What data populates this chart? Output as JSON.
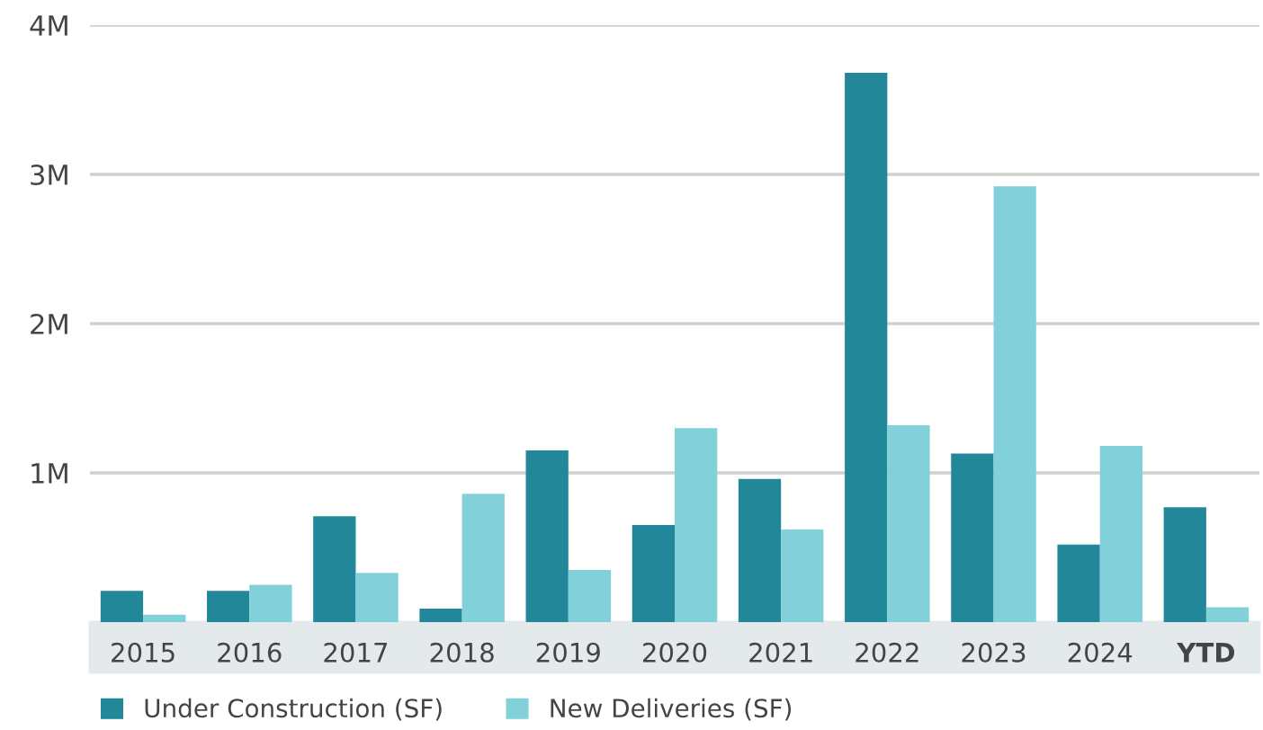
{
  "chart_data": {
    "type": "bar",
    "categories": [
      "2015",
      "2016",
      "2017",
      "2018",
      "2019",
      "2020",
      "2021",
      "2022",
      "2023",
      "2024",
      "YTD"
    ],
    "series": [
      {
        "name": "Under Construction (SF)",
        "color": "#23879a",
        "values": [
          210000,
          210000,
          710000,
          90000,
          1150000,
          650000,
          960000,
          3680000,
          1130000,
          520000,
          770000
        ]
      },
      {
        "name": "New Deliveries (SF)",
        "color": "#82d0da",
        "values": [
          50000,
          250000,
          330000,
          860000,
          350000,
          1300000,
          620000,
          1320000,
          2920000,
          1180000,
          100000
        ]
      }
    ],
    "ylim": [
      0,
      4000000
    ],
    "yticks": [
      {
        "value": 1000000,
        "label": "1M"
      },
      {
        "value": 2000000,
        "label": "2M"
      },
      {
        "value": 3000000,
        "label": "3M"
      },
      {
        "value": 4000000,
        "label": "4M"
      }
    ],
    "grid": "y",
    "legend": "bottom left"
  }
}
